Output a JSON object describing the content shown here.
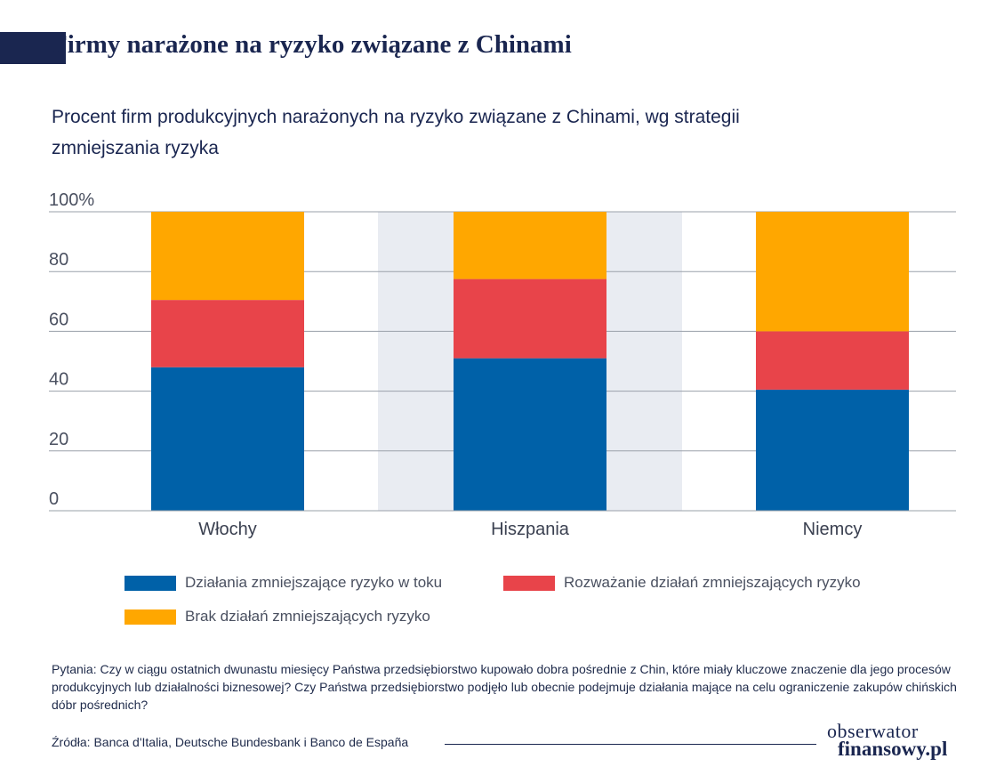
{
  "header": {
    "title": "Firmy narażone na ryzyko związane z Chinami",
    "subtitle": "Procent firm produkcyjnych narażonych na ryzyko związane z Chinami, wg strategii zmniejszania ryzyka"
  },
  "chart_data": {
    "type": "bar",
    "stacked": true,
    "categories": [
      "Włochy",
      "Hiszpania",
      "Niemcy"
    ],
    "highlighted_category": "Hiszpania",
    "series": [
      {
        "name": "Działania zmniejszające ryzyko w toku",
        "color": "#0061a8",
        "values": [
          48,
          51,
          40.5
        ]
      },
      {
        "name": "Rozważanie działań zmniejszających ryzyko",
        "color": "#e8444a",
        "values": [
          22.5,
          26.5,
          19.5
        ]
      },
      {
        "name": "Brak działań zmniejszających ryzyko",
        "color": "#ffa700",
        "values": [
          29.5,
          22.5,
          40
        ]
      }
    ],
    "y_ticks": [
      "0",
      "20",
      "40",
      "60",
      "80",
      "100%"
    ],
    "ylim": [
      0,
      100
    ],
    "grid": true,
    "legend_position": "bottom"
  },
  "footer": {
    "note": "Pytania: Czy w ciągu ostatnich dwunastu miesięcy Państwa przedsiębiorstwo kupowało dobra pośrednie z Chin, które miały kluczowe znaczenie dla jego procesów produkcyjnych lub działalności biznesowej? Czy Państwa przedsiębiorstwo podjęło lub obecnie podejmuje działania mające na celu ograniczenie zakupów chińskich dóbr pośrednich?",
    "source": "Źródła: Banca d'Italia, Deutsche Bundesbank i Banco de España",
    "logo_top": "obserwator",
    "logo_bottom": "finansowy.pl"
  }
}
